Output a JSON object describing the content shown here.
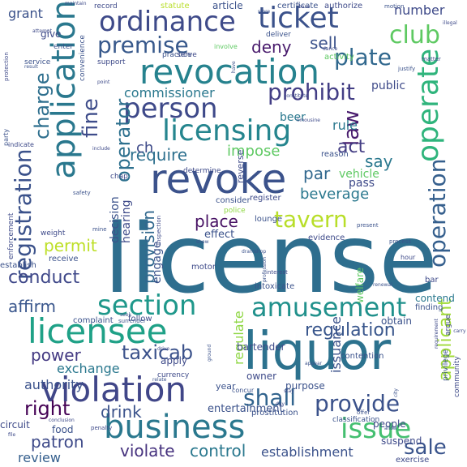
{
  "title": "Word cloud",
  "words": [
    {
      "text": "license",
      "color": "#2e6e8e",
      "rot": 0
    },
    {
      "text": "liquor",
      "color": "#2c728e",
      "rot": 0
    },
    {
      "text": "revocation",
      "color": "#26828e",
      "rot": 0
    },
    {
      "text": "revoke",
      "color": "#3b528b",
      "rot": 0
    },
    {
      "text": "application",
      "color": "#2a788e",
      "rot": -90
    },
    {
      "text": "business",
      "color": "#2a788e",
      "rot": 0
    },
    {
      "text": "licensee",
      "color": "#1fa187",
      "rot": 0
    },
    {
      "text": "violation",
      "color": "#404688",
      "rot": 0
    },
    {
      "text": "ordinance",
      "color": "#3e4a89",
      "rot": 0
    },
    {
      "text": "ticket",
      "color": "#3b528b",
      "rot": 0
    },
    {
      "text": "licensing",
      "color": "#25858e",
      "rot": 0
    },
    {
      "text": "person",
      "color": "#3e4989",
      "rot": 0
    },
    {
      "text": "operate",
      "color": "#2fb47c",
      "rot": -90
    },
    {
      "text": "registration",
      "color": "#3b528b",
      "rot": -90
    },
    {
      "text": "amusement",
      "color": "#21918c",
      "rot": 0
    },
    {
      "text": "provide",
      "color": "#3b528b",
      "rot": 0
    },
    {
      "text": "tavern",
      "color": "#b8de29",
      "rot": 0
    },
    {
      "text": "club",
      "color": "#5ec962",
      "rot": 0
    },
    {
      "text": "plate",
      "color": "#31688e",
      "rot": 0
    },
    {
      "text": "section",
      "color": "#1f988b",
      "rot": 0
    },
    {
      "text": "issue",
      "color": "#44bf70",
      "rot": 0
    },
    {
      "text": "premise",
      "color": "#38598c",
      "rot": 0
    },
    {
      "text": "prohibit",
      "color": "#433e85",
      "rot": 0
    },
    {
      "text": "operation",
      "color": "#355f8d",
      "rot": -90
    },
    {
      "text": "fine",
      "color": "#3e4c8a",
      "rot": -90
    },
    {
      "text": "operator",
      "color": "#2d708e",
      "rot": -90
    },
    {
      "text": "charge",
      "color": "#2e6f8e",
      "rot": -90
    },
    {
      "text": "shall",
      "color": "#32648e",
      "rot": 0
    },
    {
      "text": "law",
      "color": "#481b6d",
      "rot": -90
    },
    {
      "text": "regulation",
      "color": "#39568c",
      "rot": 0
    },
    {
      "text": "applicant",
      "color": "#a0da39",
      "rot": -90
    },
    {
      "text": "beverage",
      "color": "#2a788e",
      "rot": 0
    },
    {
      "text": "taxicab",
      "color": "#3b528b",
      "rot": 0
    },
    {
      "text": "conduct",
      "color": "#3f4889",
      "rot": 0
    },
    {
      "text": "require",
      "color": "#2d708e",
      "rot": 0
    },
    {
      "text": "sale",
      "color": "#3a548c",
      "rot": 0
    },
    {
      "text": "provision",
      "color": "#31688e",
      "rot": -90
    },
    {
      "text": "right",
      "color": "#440154",
      "rot": 0
    },
    {
      "text": "place",
      "color": "#471164",
      "rot": 0
    },
    {
      "text": "permit",
      "color": "#bddf26",
      "rot": 0
    },
    {
      "text": "deny",
      "color": "#481a6c",
      "rot": 0
    },
    {
      "text": "sell",
      "color": "#3b528b",
      "rot": 0
    },
    {
      "text": "par",
      "color": "#31688e",
      "rot": 0
    },
    {
      "text": "act",
      "color": "#433d84",
      "rot": 0
    },
    {
      "text": "say",
      "color": "#2a788e",
      "rot": 0
    },
    {
      "text": "impose",
      "color": "#5ec962",
      "rot": 0
    },
    {
      "text": "affirm",
      "color": "#39568c",
      "rot": 0
    },
    {
      "text": "power",
      "color": "#443a83",
      "rot": 0
    },
    {
      "text": "drink",
      "color": "#3b528b",
      "rot": 0
    },
    {
      "text": "control",
      "color": "#2a788e",
      "rot": 0
    },
    {
      "text": "violate",
      "color": "#46327e",
      "rot": 0
    },
    {
      "text": "patron",
      "color": "#3e4a89",
      "rot": 0
    },
    {
      "text": "review",
      "color": "#355f8d",
      "rot": 0
    },
    {
      "text": "establishment",
      "color": "#3b528b",
      "rot": 0
    },
    {
      "text": "exchange",
      "color": "#2a788e",
      "rot": 0
    },
    {
      "text": "regulate",
      "color": "#8fd744",
      "rot": -90
    },
    {
      "text": "commissioner",
      "color": "#2a788e",
      "rot": 0
    },
    {
      "text": "rule",
      "color": "#2a788e",
      "rot": 0
    },
    {
      "text": "beer",
      "color": "#2a788e",
      "rot": 0
    },
    {
      "text": "grant",
      "color": "#3b528b",
      "rot": 0
    },
    {
      "text": "number",
      "color": "#3e4a89",
      "rot": 0
    },
    {
      "text": "hearing",
      "color": "#3e4a89",
      "rot": -90
    },
    {
      "text": "decision",
      "color": "#3b528b",
      "rot": -90
    },
    {
      "text": "ch",
      "color": "#3e4a89",
      "rot": 0
    },
    {
      "text": "authority",
      "color": "#3b528b",
      "rot": 0
    },
    {
      "text": "engage",
      "color": "#3b528b",
      "rot": -90
    },
    {
      "text": "issuance",
      "color": "#3b528b",
      "rot": -90
    },
    {
      "text": "public",
      "color": "#3e4a89",
      "rot": 0
    },
    {
      "text": "vehicle",
      "color": "#5ec962",
      "rot": 0
    },
    {
      "text": "pass",
      "color": "#3e4a89",
      "rot": 0
    },
    {
      "text": "effect",
      "color": "#3b528b",
      "rot": 0
    },
    {
      "text": "evidence",
      "color": "#3e4a89",
      "rot": 0
    },
    {
      "text": "entertainment",
      "color": "#3b528b",
      "rot": 0
    },
    {
      "text": "bartender",
      "color": "#3e4a89",
      "rot": 0
    },
    {
      "text": "contend",
      "color": "#2a788e",
      "rot": 0
    },
    {
      "text": "finding",
      "color": "#3b528b",
      "rot": 0
    },
    {
      "text": "apply",
      "color": "#3e4a89",
      "rot": 0
    },
    {
      "text": "complaint",
      "color": "#3b528b",
      "rot": 0
    },
    {
      "text": "follow",
      "color": "#3e4a89",
      "rot": 0
    },
    {
      "text": "receive",
      "color": "#3b528b",
      "rot": 0
    },
    {
      "text": "circuit",
      "color": "#3e4a89",
      "rot": 0
    },
    {
      "text": "food",
      "color": "#3b528b",
      "rot": 0
    },
    {
      "text": "people",
      "color": "#3e4a89",
      "rot": 0
    },
    {
      "text": "purpose",
      "color": "#3b528b",
      "rot": 0
    },
    {
      "text": "owner",
      "color": "#3e4a89",
      "rot": 0
    },
    {
      "text": "prostitution",
      "color": "#3b528b",
      "rot": 0
    },
    {
      "text": "suspend",
      "color": "#3e4a89",
      "rot": 0
    },
    {
      "text": "obtain",
      "color": "#3b528b",
      "rot": 0
    },
    {
      "text": "reverse",
      "color": "#3e4a89",
      "rot": -90
    },
    {
      "text": "consider",
      "color": "#3b528b",
      "rot": 0
    },
    {
      "text": "register",
      "color": "#3e4a89",
      "rot": 0
    },
    {
      "text": "police",
      "color": "#8fd744",
      "rot": 0
    },
    {
      "text": "intoxicate",
      "color": "#3b528b",
      "rot": 0
    },
    {
      "text": "motor",
      "color": "#3e4a89",
      "rot": 0
    },
    {
      "text": "establish",
      "color": "#3b528b",
      "rot": 0
    },
    {
      "text": "bar",
      "color": "#3e4a89",
      "rot": 0
    },
    {
      "text": "lounge",
      "color": "#3b528b",
      "rot": 0
    },
    {
      "text": "determine",
      "color": "#3e4a89",
      "rot": 0
    },
    {
      "text": "reason",
      "color": "#3b528b",
      "rot": 0
    },
    {
      "text": "chap",
      "color": "#3e4a89",
      "rot": 0
    },
    {
      "text": "article",
      "color": "#3b528b",
      "rot": 0
    },
    {
      "text": "record",
      "color": "#3e4a89",
      "rot": 0
    },
    {
      "text": "deliver",
      "color": "#3b528b",
      "rot": 0
    },
    {
      "text": "give",
      "color": "#3e4a89",
      "rot": 0
    },
    {
      "text": "enter",
      "color": "#3b528b",
      "rot": 0
    },
    {
      "text": "support",
      "color": "#3e4a89",
      "rot": 0
    },
    {
      "text": "practice",
      "color": "#3b528b",
      "rot": 0
    },
    {
      "text": "serve",
      "color": "#3e4a89",
      "rot": 0
    },
    {
      "text": "activity",
      "color": "#5ec962",
      "rot": 0
    },
    {
      "text": "year",
      "color": "#3b528b",
      "rot": 0
    },
    {
      "text": "statute",
      "color": "#b8de29",
      "rot": 0
    },
    {
      "text": "authorize",
      "color": "#3e4a89",
      "rot": 0
    },
    {
      "text": "certificate",
      "color": "#3b528b",
      "rot": 0
    },
    {
      "text": "exercise",
      "color": "#3e4a89",
      "rot": 0
    },
    {
      "text": "classification",
      "color": "#3b528b",
      "rot": 0
    },
    {
      "text": "welfare",
      "color": "#5ec962",
      "rot": -90
    },
    {
      "text": "community",
      "color": "#3e4a89",
      "rot": -90
    },
    {
      "text": "privilege",
      "color": "#3b528b",
      "rot": -90
    },
    {
      "text": "argue",
      "color": "#3e4a89",
      "rot": -90
    },
    {
      "text": "contention",
      "color": "#3b528b",
      "rot": 0
    },
    {
      "text": "weight",
      "color": "#3e4a89",
      "rot": 0
    },
    {
      "text": "service",
      "color": "#3b528b",
      "rot": 0
    },
    {
      "text": "enforcement",
      "color": "#3e4a89",
      "rot": -90
    },
    {
      "text": "surrender",
      "color": "#3b528b",
      "rot": 0
    },
    {
      "text": "protection",
      "color": "#3e4a89",
      "rot": -90
    },
    {
      "text": "convenience",
      "color": "#3b528b",
      "rot": -90
    },
    {
      "text": "point",
      "color": "#3e4a89",
      "rot": 0
    },
    {
      "text": "present",
      "color": "#3b528b",
      "rot": 0
    },
    {
      "text": "limousine",
      "color": "#3e4a89",
      "rot": 0
    },
    {
      "text": "dramshop",
      "color": "#3b528b",
      "rot": 0
    },
    {
      "text": "currency",
      "color": "#3e4a89",
      "rot": 0
    },
    {
      "text": "concur",
      "color": "#3b528b",
      "rot": 0
    },
    {
      "text": "hour",
      "color": "#3e4a89",
      "rot": 0
    },
    {
      "text": "mine",
      "color": "#3b528b",
      "rot": 0
    },
    {
      "text": "base",
      "color": "#3e4a89",
      "rot": 0
    },
    {
      "text": "motion",
      "color": "#3b528b",
      "rot": 0
    },
    {
      "text": "matter",
      "color": "#3e4a89",
      "rot": 0
    },
    {
      "text": "justify",
      "color": "#3b528b",
      "rot": 0
    },
    {
      "text": "dance",
      "color": "#3e4a89",
      "rot": 0
    },
    {
      "text": "offer",
      "color": "#3b528b",
      "rot": 0
    },
    {
      "text": "attempt",
      "color": "#3e4a89",
      "rot": 0
    },
    {
      "text": "result",
      "color": "#3b528b",
      "rot": 0
    },
    {
      "text": "interest",
      "color": "#3e4a89",
      "rot": 0
    },
    {
      "text": "process",
      "color": "#3b528b",
      "rot": 0
    },
    {
      "text": "involve",
      "color": "#5ec962",
      "rot": 0
    },
    {
      "text": "maintain",
      "color": "#3e4a89",
      "rot": 0
    },
    {
      "text": "store",
      "color": "#3b528b",
      "rot": 0
    },
    {
      "text": "constitute",
      "color": "#3e4a89",
      "rot": 0
    },
    {
      "text": "seek",
      "color": "#3b528b",
      "rot": 0
    },
    {
      "text": "penalty",
      "color": "#3e4a89",
      "rot": 0
    },
    {
      "text": "safety",
      "color": "#3b528b",
      "rot": 0
    },
    {
      "text": "inspection",
      "color": "#3e4a89",
      "rot": -90
    },
    {
      "text": "renewal",
      "color": "#3b528b",
      "rot": 0
    },
    {
      "text": "conclusion",
      "color": "#3e4a89",
      "rot": 0
    },
    {
      "text": "allow",
      "color": "#3b528b",
      "rot": 0
    },
    {
      "text": "illegal",
      "color": "#3e4a89",
      "rot": 0
    },
    {
      "text": "relate",
      "color": "#3b528b",
      "rot": 0
    },
    {
      "text": "day",
      "color": "#3e4a89",
      "rot": 0
    },
    {
      "text": "show",
      "color": "#3b528b",
      "rot": 0
    },
    {
      "text": "carry",
      "color": "#3e4a89",
      "rot": 0
    },
    {
      "text": "profession",
      "color": "#3b528b",
      "rot": -90
    },
    {
      "text": "requirement",
      "color": "#3e4a89",
      "rot": -90
    },
    {
      "text": "appear",
      "color": "#3b528b",
      "rot": 0
    },
    {
      "text": "stay",
      "color": "#3e4a89",
      "rot": 0
    },
    {
      "text": "ground",
      "color": "#3b528b",
      "rot": -90
    },
    {
      "text": "drive",
      "color": "#3e4a89",
      "rot": 0
    },
    {
      "text": "have",
      "color": "#3b528b",
      "rot": -90
    },
    {
      "text": "include",
      "color": "#3e4a89",
      "rot": 0
    },
    {
      "text": "city",
      "color": "#3b528b",
      "rot": -90
    },
    {
      "text": "file",
      "color": "#3e4a89",
      "rot": 0
    },
    {
      "text": "party",
      "color": "#3b528b",
      "rot": -90
    },
    {
      "text": "indicate",
      "color": "#3e4a89",
      "rot": 0
    }
  ]
}
